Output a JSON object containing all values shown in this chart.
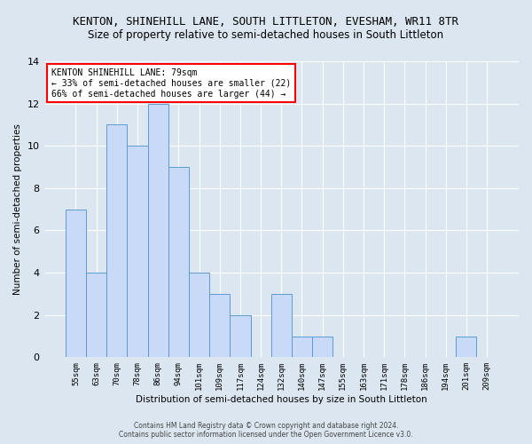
{
  "title": "KENTON, SHINEHILL LANE, SOUTH LITTLETON, EVESHAM, WR11 8TR",
  "subtitle": "Size of property relative to semi-detached houses in South Littleton",
  "xlabel": "Distribution of semi-detached houses by size in South Littleton",
  "ylabel": "Number of semi-detached properties",
  "categories": [
    "55sqm",
    "63sqm",
    "70sqm",
    "78sqm",
    "86sqm",
    "94sqm",
    "101sqm",
    "109sqm",
    "117sqm",
    "124sqm",
    "132sqm",
    "140sqm",
    "147sqm",
    "155sqm",
    "163sqm",
    "171sqm",
    "178sqm",
    "186sqm",
    "194sqm",
    "201sqm",
    "209sqm"
  ],
  "values": [
    7,
    4,
    11,
    10,
    12,
    9,
    4,
    3,
    2,
    0,
    3,
    1,
    1,
    0,
    0,
    0,
    0,
    0,
    0,
    1,
    0
  ],
  "bar_color": "#c9daf8",
  "bar_edge_color": "#5b9bd5",
  "ylim": [
    0,
    14
  ],
  "yticks": [
    0,
    2,
    4,
    6,
    8,
    10,
    12,
    14
  ],
  "annotation_title": "KENTON SHINEHILL LANE: 79sqm",
  "annotation_line1": "← 33% of semi-detached houses are smaller (22)",
  "annotation_line2": "66% of semi-detached houses are larger (44) →",
  "background_color": "#dce6f1",
  "footer1": "Contains HM Land Registry data © Crown copyright and database right 2024.",
  "footer2": "Contains public sector information licensed under the Open Government Licence v3.0.",
  "title_fontsize": 9,
  "subtitle_fontsize": 8.5
}
